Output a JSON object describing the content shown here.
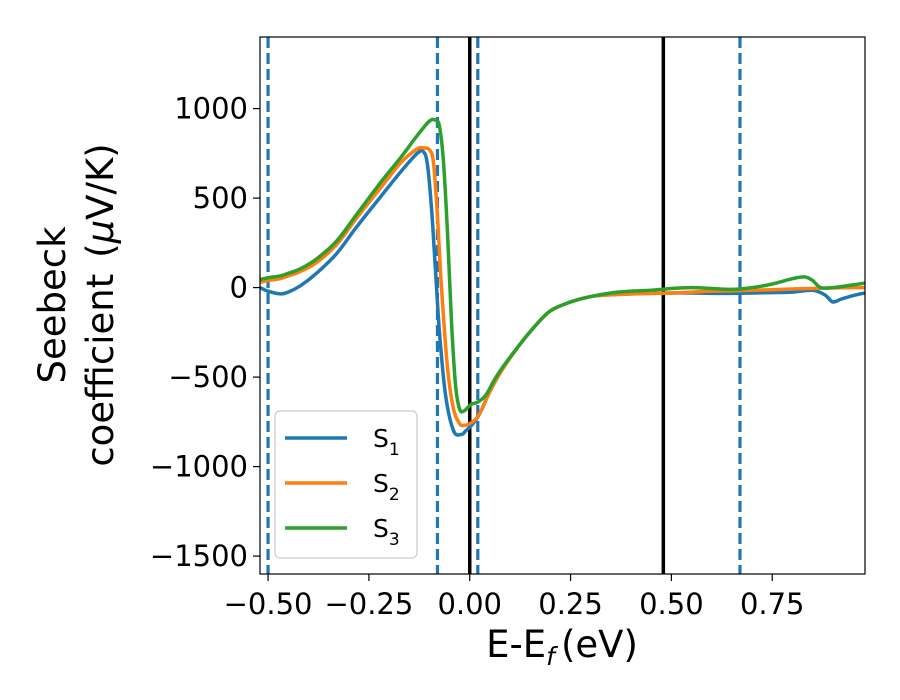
{
  "chart_data": {
    "type": "line",
    "xlabel": "E-E",
    "xlabel_sub": "f",
    "xlabel_unit": "(eV)",
    "ylabel_line1": "Seebeck",
    "ylabel_line2": "coefficient",
    "ylabel_unit_mu": "μ",
    "ylabel_unit_rest": "V/K)",
    "ylabel_unit_open": "(",
    "xlim": [
      -0.52,
      0.98
    ],
    "ylim": [
      -1600,
      1400
    ],
    "x_ticks": [
      -0.5,
      -0.25,
      0.0,
      0.25,
      0.5,
      0.75
    ],
    "x_tick_labels": [
      "−0.50",
      "−0.25",
      "0.00",
      "0.25",
      "0.50",
      "0.75"
    ],
    "y_ticks": [
      1000,
      500,
      0,
      -500,
      -1000,
      -1500
    ],
    "y_tick_labels": [
      "1000",
      "500",
      "0",
      "−500",
      "−1000",
      "−1500"
    ],
    "grid": false,
    "legend_position": "lower-left",
    "vlines_solid": {
      "color": "#000000",
      "x": [
        0.0,
        0.48
      ]
    },
    "vlines_dashed": {
      "color": "#1f77b4",
      "x": [
        -0.5,
        -0.08,
        0.02,
        0.67
      ]
    },
    "series": [
      {
        "name": "S",
        "sub": "1",
        "color": "#1f77b4",
        "x": [
          -0.52,
          -0.5,
          -0.47,
          -0.45,
          -0.42,
          -0.38,
          -0.33,
          -0.28,
          -0.22,
          -0.17,
          -0.13,
          -0.115,
          -0.105,
          -0.095,
          -0.085,
          -0.075,
          -0.06,
          -0.04,
          -0.02,
          -0.01,
          0.0,
          0.015,
          0.03,
          0.05,
          0.08,
          0.12,
          0.16,
          0.2,
          0.25,
          0.3,
          0.35,
          0.4,
          0.45,
          0.5,
          0.55,
          0.6,
          0.65,
          0.7,
          0.75,
          0.8,
          0.85,
          0.88,
          0.9,
          0.92,
          0.95,
          0.98
        ],
        "y": [
          0,
          -20,
          -35,
          -25,
          10,
          80,
          190,
          340,
          510,
          650,
          750,
          760,
          690,
          450,
          100,
          -250,
          -600,
          -800,
          -820,
          -800,
          -780,
          -740,
          -680,
          -580,
          -460,
          -330,
          -220,
          -130,
          -80,
          -50,
          -40,
          -35,
          -32,
          -30,
          -30,
          -32,
          -32,
          -30,
          -28,
          -25,
          -15,
          -40,
          -80,
          -65,
          -45,
          -30
        ]
      },
      {
        "name": "S",
        "sub": "2",
        "color": "#ff7f0e",
        "x": [
          -0.52,
          -0.5,
          -0.47,
          -0.45,
          -0.42,
          -0.38,
          -0.33,
          -0.28,
          -0.22,
          -0.17,
          -0.13,
          -0.115,
          -0.1,
          -0.09,
          -0.08,
          -0.07,
          -0.055,
          -0.04,
          -0.025,
          -0.015,
          0.0,
          0.015,
          0.03,
          0.05,
          0.08,
          0.12,
          0.16,
          0.2,
          0.25,
          0.3,
          0.35,
          0.4,
          0.45,
          0.5,
          0.55,
          0.6,
          0.65,
          0.7,
          0.75,
          0.8,
          0.85,
          0.9,
          0.95,
          0.98
        ],
        "y": [
          30,
          40,
          50,
          65,
          90,
          140,
          240,
          390,
          560,
          700,
          775,
          780,
          770,
          700,
          400,
          0,
          -450,
          -680,
          -760,
          -770,
          -760,
          -735,
          -680,
          -580,
          -460,
          -330,
          -220,
          -130,
          -80,
          -50,
          -40,
          -35,
          -32,
          -30,
          -25,
          -20,
          -18,
          -15,
          -12,
          -8,
          -5,
          -2,
          0,
          0
        ]
      },
      {
        "name": "S",
        "sub": "3",
        "color": "#2ca02c",
        "x": [
          -0.52,
          -0.5,
          -0.47,
          -0.45,
          -0.42,
          -0.38,
          -0.33,
          -0.28,
          -0.22,
          -0.17,
          -0.13,
          -0.1,
          -0.085,
          -0.075,
          -0.065,
          -0.055,
          -0.045,
          -0.035,
          -0.025,
          -0.015,
          -0.005,
          0.005,
          0.02,
          0.04,
          0.06,
          0.08,
          0.12,
          0.16,
          0.2,
          0.25,
          0.3,
          0.35,
          0.4,
          0.45,
          0.5,
          0.55,
          0.6,
          0.65,
          0.7,
          0.75,
          0.8,
          0.83,
          0.85,
          0.87,
          0.9,
          0.95,
          0.98
        ],
        "y": [
          45,
          55,
          65,
          80,
          105,
          160,
          260,
          410,
          590,
          730,
          850,
          930,
          935,
          900,
          700,
          300,
          -200,
          -550,
          -680,
          -690,
          -670,
          -650,
          -640,
          -600,
          -520,
          -450,
          -330,
          -220,
          -130,
          -80,
          -50,
          -30,
          -20,
          -15,
          -5,
          0,
          -5,
          -10,
          0,
          20,
          50,
          60,
          40,
          0,
          0,
          15,
          25
        ]
      }
    ]
  }
}
